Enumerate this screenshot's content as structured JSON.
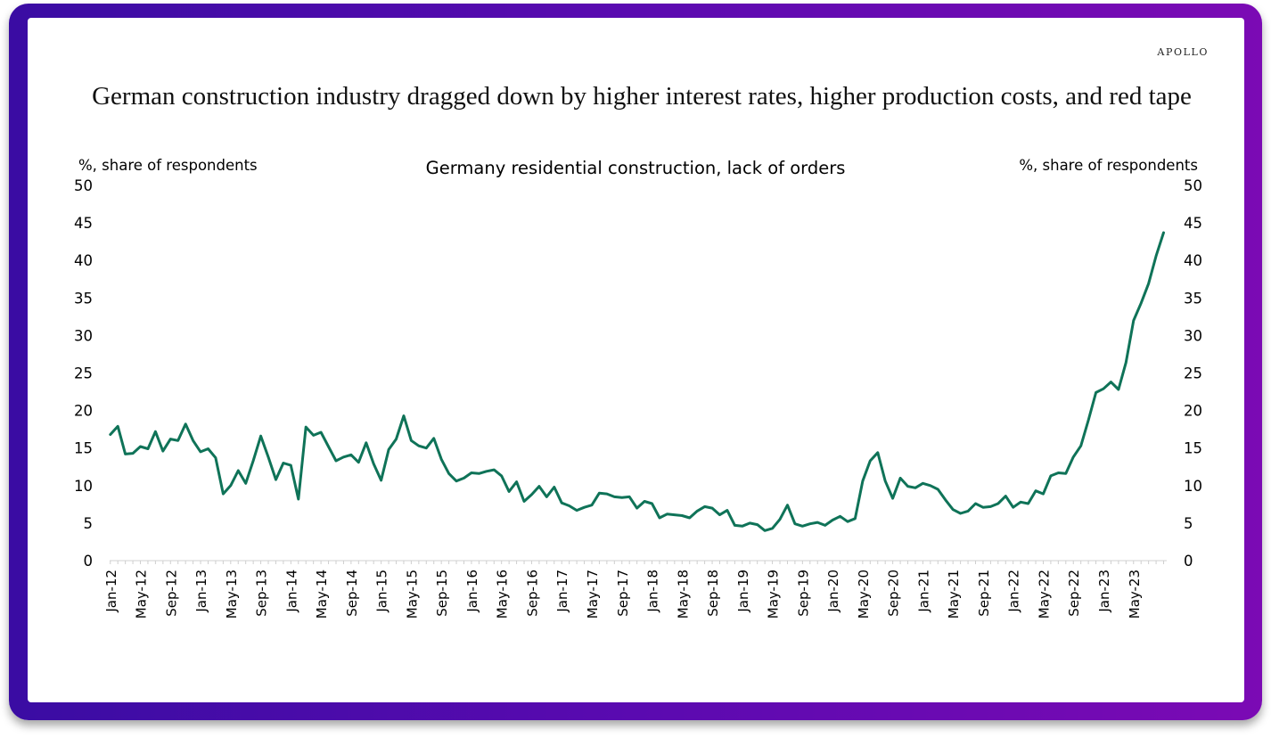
{
  "brand": "APOLLO",
  "title": "German construction industry dragged down by higher interest rates, higher production costs, and red tape",
  "colors": {
    "line": "#0f7358",
    "frame_start": "#3a0ca3",
    "frame_end": "#7b0ab4"
  },
  "chart_data": {
    "type": "line",
    "title": "Germany residential construction, lack of orders",
    "ylabel_left": "%, share of respondents",
    "ylabel_right": "%, share of respondents",
    "ylim": [
      0,
      50
    ],
    "yticks": [
      0,
      5,
      10,
      15,
      20,
      25,
      30,
      35,
      40,
      45,
      50
    ],
    "xtick_labels": [
      "Jan-12",
      "May-12",
      "Sep-12",
      "Jan-13",
      "May-13",
      "Sep-13",
      "Jan-14",
      "May-14",
      "Sep-14",
      "Jan-15",
      "May-15",
      "Sep-15",
      "Jan-16",
      "May-16",
      "Sep-16",
      "Jan-17",
      "May-17",
      "Sep-17",
      "Jan-18",
      "May-18",
      "Sep-18",
      "Jan-19",
      "May-19",
      "Sep-19",
      "Jan-20",
      "May-20",
      "Sep-20",
      "Jan-21",
      "May-21",
      "Sep-21",
      "Jan-22",
      "May-22",
      "Sep-22",
      "Jan-23",
      "May-23"
    ],
    "grid": false,
    "series": [
      {
        "start": "Jan-12",
        "values": [
          16.8,
          17.9,
          14.2,
          14.3,
          15.2,
          14.9,
          17.2,
          14.6,
          16.2,
          16.0,
          18.2,
          16.0,
          14.5,
          14.9,
          13.7,
          8.9,
          10.0,
          12.0,
          10.3,
          13.3,
          16.6,
          13.8,
          10.8,
          13.0,
          12.7,
          8.2,
          17.8,
          16.7,
          17.1,
          15.2,
          13.3,
          13.8,
          14.1,
          13.1,
          15.7,
          12.9,
          10.7,
          14.8,
          16.2,
          19.3,
          16.0,
          15.3,
          15.0,
          16.3,
          13.5,
          11.6,
          10.6,
          11.0,
          11.7,
          11.6,
          11.9,
          12.1,
          11.3,
          9.2,
          10.5,
          7.9,
          8.8,
          9.9,
          8.5,
          9.8,
          7.7,
          7.3,
          6.7,
          7.1,
          7.4,
          9.0,
          8.9,
          8.5,
          8.4,
          8.5,
          7.0,
          7.9,
          7.6,
          5.7,
          6.2,
          6.1,
          6.0,
          5.7,
          6.6,
          7.2,
          7.0,
          6.1,
          6.7,
          4.7,
          4.6,
          5.0,
          4.8,
          4.0,
          4.3,
          5.5,
          7.4,
          4.9,
          4.6,
          4.9,
          5.1,
          4.7,
          5.4,
          5.9,
          5.2,
          5.6,
          10.6,
          13.3,
          14.4,
          10.6,
          8.3,
          11.0,
          9.9,
          9.7,
          10.3,
          10.0,
          9.5,
          8.1,
          6.8,
          6.3,
          6.6,
          7.6,
          7.1,
          7.2,
          7.6,
          8.6,
          7.1,
          7.8,
          7.6,
          9.3,
          8.9,
          11.3,
          11.7,
          11.6,
          13.8,
          15.3,
          18.7,
          22.4,
          22.9,
          23.8,
          22.8,
          26.4,
          32.0,
          34.3,
          36.9,
          40.6,
          43.7
        ]
      }
    ]
  }
}
